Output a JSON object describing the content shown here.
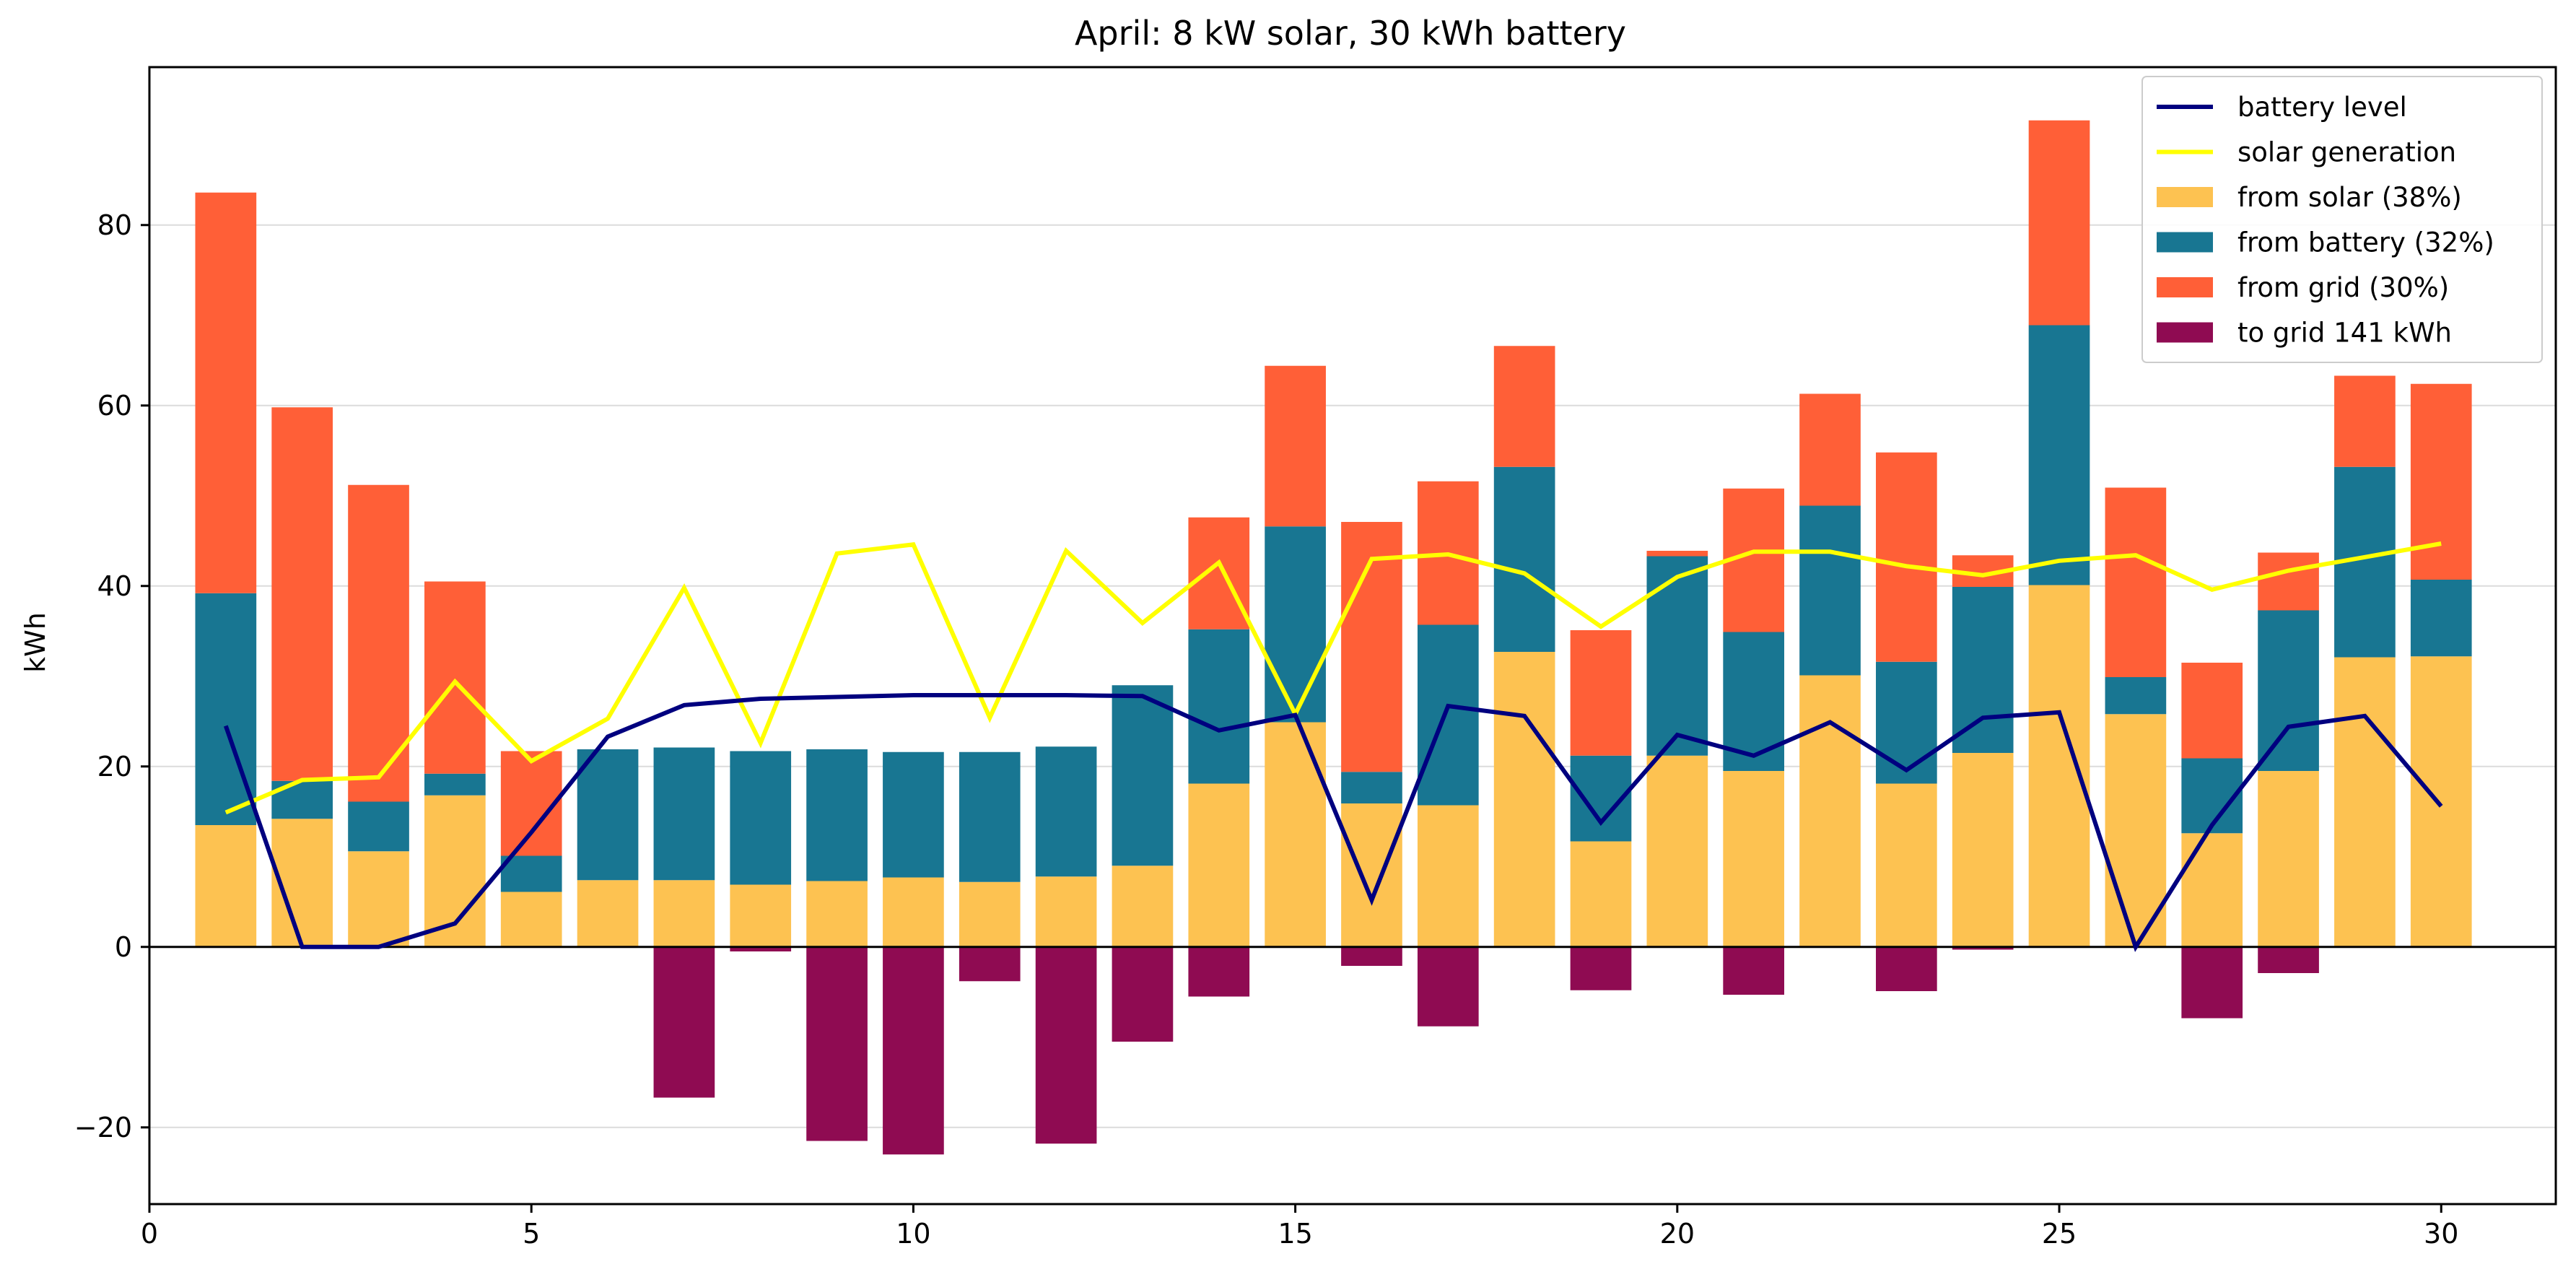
{
  "chart_data": {
    "type": "bar",
    "title": "April: 8 kW solar, 30 kWh battery",
    "xlabel": "",
    "ylabel": "kWh",
    "xlim": [
      0,
      31.5
    ],
    "ylim": [
      -28.5,
      97.5
    ],
    "x_ticks": [
      0,
      5,
      10,
      15,
      20,
      25,
      30
    ],
    "x_tick_labels": [
      "0",
      "5",
      "10",
      "15",
      "20",
      "25",
      "30"
    ],
    "y_ticks": [
      -20,
      0,
      20,
      40,
      60,
      80
    ],
    "y_tick_labels": [
      "−20",
      "0",
      "20",
      "40",
      "60",
      "80"
    ],
    "grid": "horizontal",
    "legend_position": "top-right",
    "days": [
      1,
      2,
      3,
      4,
      5,
      6,
      7,
      8,
      9,
      10,
      11,
      12,
      13,
      14,
      15,
      16,
      17,
      18,
      19,
      20,
      21,
      22,
      23,
      24,
      25,
      26,
      27,
      28,
      29,
      30
    ],
    "colors": {
      "battery_level": "#00007f",
      "solar_generation": "#ffff00",
      "from_solar": "#fdc251",
      "from_battery": "#187692",
      "from_grid": "#ff5f37",
      "to_grid": "#8f0b52"
    },
    "series": [
      {
        "key": "from_solar",
        "name": "from solar (38%)",
        "type": "bar",
        "values": [
          13.5,
          14.2,
          10.6,
          16.8,
          6.1,
          7.4,
          7.4,
          6.9,
          7.3,
          7.7,
          7.2,
          7.8,
          9.0,
          18.1,
          24.9,
          15.9,
          15.7,
          32.7,
          11.7,
          21.2,
          19.5,
          30.1,
          18.1,
          21.5,
          40.1,
          25.8,
          12.6,
          19.5,
          32.1,
          32.2
        ]
      },
      {
        "key": "from_battery",
        "name": "from battery (32%)",
        "type": "bar",
        "values": [
          25.7,
          4.2,
          5.5,
          2.4,
          4.0,
          14.5,
          14.7,
          14.8,
          14.6,
          13.9,
          14.4,
          14.4,
          20.0,
          17.1,
          21.7,
          3.5,
          20.0,
          20.5,
          9.5,
          22.1,
          15.4,
          18.8,
          13.5,
          18.4,
          28.8,
          4.1,
          8.3,
          17.8,
          21.1,
          8.5
        ]
      },
      {
        "key": "from_grid",
        "name": "from grid (30%)",
        "type": "bar",
        "values": [
          44.4,
          41.4,
          35.1,
          21.3,
          11.6,
          0,
          0,
          0,
          0,
          0,
          0,
          0,
          0,
          12.4,
          17.8,
          27.7,
          15.9,
          13.4,
          13.9,
          0.6,
          15.9,
          12.4,
          23.2,
          3.5,
          22.7,
          21.0,
          10.6,
          6.4,
          10.1,
          21.7
        ]
      },
      {
        "key": "to_grid",
        "name": "to grid 141 kWh",
        "type": "bar",
        "values": [
          0,
          0,
          0,
          0,
          0,
          0,
          -16.7,
          -0.5,
          -21.5,
          -23.0,
          -3.8,
          -21.8,
          -10.5,
          -5.5,
          0,
          -2.1,
          -8.8,
          0,
          -4.8,
          0,
          -5.3,
          0,
          -4.9,
          -0.3,
          0,
          0,
          -7.9,
          -2.9,
          0,
          0
        ]
      },
      {
        "key": "battery_level",
        "name": "battery level",
        "type": "line",
        "values": [
          24.5,
          0.0,
          0.0,
          2.6,
          12.7,
          23.3,
          26.8,
          27.5,
          27.7,
          27.9,
          27.9,
          27.9,
          27.8,
          24.0,
          25.7,
          5.2,
          26.7,
          25.6,
          13.8,
          23.5,
          21.2,
          24.9,
          19.6,
          25.4,
          26.0,
          0.0,
          13.5,
          24.4,
          25.6,
          15.6
        ]
      },
      {
        "key": "solar_generation",
        "name": "solar generation",
        "type": "line",
        "values": [
          14.9,
          18.5,
          18.8,
          29.4,
          20.6,
          25.3,
          39.8,
          22.6,
          43.6,
          44.6,
          25.4,
          43.9,
          35.9,
          42.6,
          25.8,
          43.0,
          43.5,
          41.4,
          35.5,
          41.0,
          43.8,
          43.8,
          42.2,
          41.2,
          42.8,
          43.4,
          39.6,
          41.7,
          43.2,
          44.7
        ]
      }
    ],
    "legend_order": [
      "battery_level",
      "solar_generation",
      "from_solar",
      "from_battery",
      "from_grid",
      "to_grid"
    ]
  }
}
